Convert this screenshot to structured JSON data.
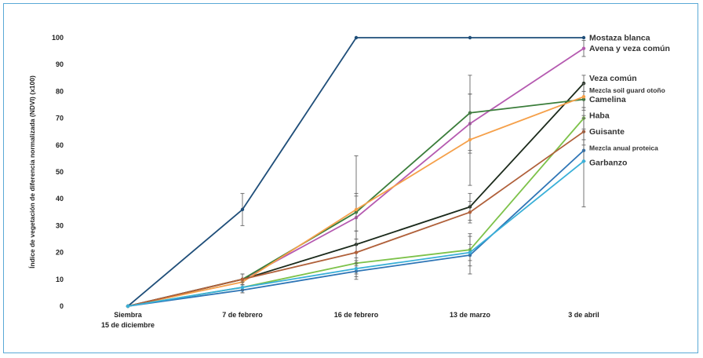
{
  "chart_data": {
    "type": "line",
    "ylabel": "Índice de vegetación de diferencia normalizada (NDVI) (x100)",
    "ylim": [
      0,
      100
    ],
    "yticks": [
      0,
      10,
      20,
      30,
      40,
      50,
      60,
      70,
      80,
      90,
      100
    ],
    "categories": [
      [
        "Siembra",
        "15 de diciembre"
      ],
      [
        "7 de febrero"
      ],
      [
        "16 de febrero"
      ],
      [
        "13 de marzo"
      ],
      [
        "3 de abril"
      ]
    ],
    "grid": false,
    "series": [
      {
        "name": "Mostaza blanca",
        "color": "#1f4e79",
        "values": [
          0,
          36,
          100,
          100,
          100
        ],
        "errors": [
          0,
          6,
          0,
          0,
          0
        ]
      },
      {
        "name": "Avena y veza común",
        "color": "#b55ab0",
        "values": [
          0,
          10,
          33,
          68,
          96
        ],
        "errors": [
          0,
          2,
          8,
          11,
          3
        ]
      },
      {
        "name": "Veza común",
        "color": "#1b2a1b",
        "values": [
          0,
          10,
          23,
          37,
          83
        ],
        "errors": [
          0,
          2,
          5,
          5,
          3
        ]
      },
      {
        "name": "Mezcla soil guard otoño",
        "color": "#3a7d3a",
        "values": [
          0,
          10,
          35,
          72,
          77
        ],
        "errors": [
          0,
          2,
          7,
          14,
          3
        ]
      },
      {
        "name": "Camelina",
        "color": "#f5a04a",
        "values": [
          0,
          9,
          36,
          62,
          78
        ],
        "errors": [
          0,
          3,
          20,
          17,
          5
        ]
      },
      {
        "name": "Haba",
        "color": "#7dc24a",
        "values": [
          0,
          7,
          16,
          21,
          70
        ],
        "errors": [
          0,
          2,
          4,
          6,
          4
        ]
      },
      {
        "name": "Guisante",
        "color": "#b0603a",
        "values": [
          0,
          10,
          20,
          35,
          65
        ],
        "errors": [
          0,
          2,
          5,
          4,
          5
        ]
      },
      {
        "name": "Mezcla anual proteica",
        "color": "#2e75b6",
        "values": [
          0,
          6,
          13,
          19,
          58
        ],
        "errors": [
          0,
          1,
          3,
          7,
          4
        ]
      },
      {
        "name": "Garbanzo",
        "color": "#3ab0d8",
        "values": [
          0,
          7,
          14,
          20,
          54
        ],
        "errors": [
          0,
          1,
          3,
          3,
          17
        ]
      }
    ],
    "legend": [
      {
        "text": "Mostaza blanca",
        "value": 100,
        "size": "large"
      },
      {
        "text": "Avena y veza común",
        "value": 96,
        "size": "large"
      },
      {
        "text": "Veza común",
        "value": 85,
        "size": "large"
      },
      {
        "text": "Mezcla soil guard otoño",
        "value": 80.5,
        "size": "small"
      },
      {
        "text": "Camelina",
        "value": 77,
        "size": "large"
      },
      {
        "text": "Haba",
        "value": 71,
        "size": "large"
      },
      {
        "text": "Guisante",
        "value": 65,
        "size": "large"
      },
      {
        "text": "Mezcla anual proteica",
        "value": 59,
        "size": "small"
      },
      {
        "text": "Garbanzo",
        "value": 53.5,
        "size": "large"
      }
    ]
  }
}
